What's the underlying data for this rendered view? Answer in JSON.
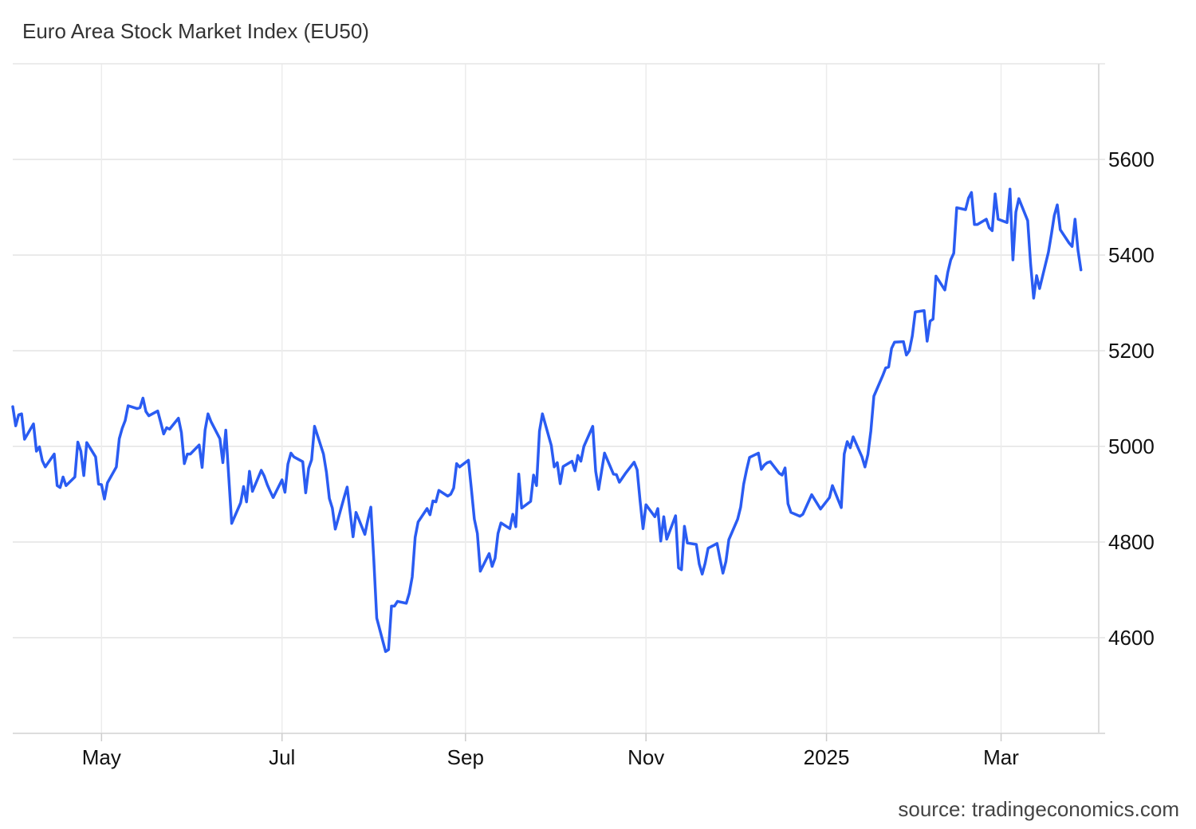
{
  "chart_data": {
    "type": "line",
    "title": "Euro Area Stock Market Index (EU50)",
    "source": "source: tradingeconomics.com",
    "xlabel": "",
    "ylabel": "",
    "x_ticks": [
      "May",
      "Jul",
      "Sep",
      "Nov",
      "2025",
      "Mar"
    ],
    "x_tick_dates": [
      "2024-05-01",
      "2024-07-01",
      "2024-09-01",
      "2024-11-01",
      "2025-01-01",
      "2025-03-01"
    ],
    "y_ticks": [
      4600,
      4800,
      5000,
      5200,
      5400,
      5600
    ],
    "xlim": [
      "2024-04-01",
      "2025-04-03"
    ],
    "ylim": [
      4400,
      5800
    ],
    "grid": true,
    "y_axis_position": "right",
    "line_color": "#2a5cf2",
    "series": [
      {
        "name": "",
        "x": [
          "2024-04-01",
          "2024-04-02",
          "2024-04-03",
          "2024-04-04",
          "2024-04-05",
          "2024-04-08",
          "2024-04-09",
          "2024-04-10",
          "2024-04-11",
          "2024-04-12",
          "2024-04-15",
          "2024-04-16",
          "2024-04-17",
          "2024-04-18",
          "2024-04-19",
          "2024-04-22",
          "2024-04-23",
          "2024-04-24",
          "2024-04-25",
          "2024-04-26",
          "2024-04-29",
          "2024-04-30",
          "2024-05-01",
          "2024-05-02",
          "2024-05-03",
          "2024-05-06",
          "2024-05-07",
          "2024-05-08",
          "2024-05-09",
          "2024-05-10",
          "2024-05-13",
          "2024-05-14",
          "2024-05-15",
          "2024-05-16",
          "2024-05-17",
          "2024-05-20",
          "2024-05-21",
          "2024-05-22",
          "2024-05-23",
          "2024-05-24",
          "2024-05-27",
          "2024-05-28",
          "2024-05-29",
          "2024-05-30",
          "2024-05-31",
          "2024-06-03",
          "2024-06-04",
          "2024-06-05",
          "2024-06-06",
          "2024-06-07",
          "2024-06-10",
          "2024-06-11",
          "2024-06-12",
          "2024-06-13",
          "2024-06-14",
          "2024-06-17",
          "2024-06-18",
          "2024-06-19",
          "2024-06-20",
          "2024-06-21",
          "2024-06-24",
          "2024-06-25",
          "2024-06-26",
          "2024-06-27",
          "2024-06-28",
          "2024-07-01",
          "2024-07-02",
          "2024-07-03",
          "2024-07-04",
          "2024-07-05",
          "2024-07-08",
          "2024-07-09",
          "2024-07-10",
          "2024-07-11",
          "2024-07-12",
          "2024-07-15",
          "2024-07-16",
          "2024-07-17",
          "2024-07-18",
          "2024-07-19",
          "2024-07-22",
          "2024-07-23",
          "2024-07-24",
          "2024-07-25",
          "2024-07-26",
          "2024-07-29",
          "2024-07-30",
          "2024-07-31",
          "2024-08-01",
          "2024-08-02",
          "2024-08-05",
          "2024-08-06",
          "2024-08-07",
          "2024-08-08",
          "2024-08-09",
          "2024-08-12",
          "2024-08-13",
          "2024-08-14",
          "2024-08-15",
          "2024-08-16",
          "2024-08-19",
          "2024-08-20",
          "2024-08-21",
          "2024-08-22",
          "2024-08-23",
          "2024-08-26",
          "2024-08-27",
          "2024-08-28",
          "2024-08-29",
          "2024-08-30",
          "2024-09-02",
          "2024-09-03",
          "2024-09-04",
          "2024-09-05",
          "2024-09-06",
          "2024-09-09",
          "2024-09-10",
          "2024-09-11",
          "2024-09-12",
          "2024-09-13",
          "2024-09-16",
          "2024-09-17",
          "2024-09-18",
          "2024-09-19",
          "2024-09-20",
          "2024-09-23",
          "2024-09-24",
          "2024-09-25",
          "2024-09-26",
          "2024-09-27",
          "2024-09-30",
          "2024-10-01",
          "2024-10-02",
          "2024-10-03",
          "2024-10-04",
          "2024-10-07",
          "2024-10-08",
          "2024-10-09",
          "2024-10-10",
          "2024-10-11",
          "2024-10-14",
          "2024-10-15",
          "2024-10-16",
          "2024-10-17",
          "2024-10-18",
          "2024-10-21",
          "2024-10-22",
          "2024-10-23",
          "2024-10-24",
          "2024-10-25",
          "2024-10-28",
          "2024-10-29",
          "2024-10-30",
          "2024-10-31",
          "2024-11-01",
          "2024-11-04",
          "2024-11-05",
          "2024-11-06",
          "2024-11-07",
          "2024-11-08",
          "2024-11-11",
          "2024-11-12",
          "2024-11-13",
          "2024-11-14",
          "2024-11-15",
          "2024-11-18",
          "2024-11-19",
          "2024-11-20",
          "2024-11-21",
          "2024-11-22",
          "2024-11-25",
          "2024-11-26",
          "2024-11-27",
          "2024-11-28",
          "2024-11-29",
          "2024-12-02",
          "2024-12-03",
          "2024-12-04",
          "2024-12-05",
          "2024-12-06",
          "2024-12-09",
          "2024-12-10",
          "2024-12-11",
          "2024-12-12",
          "2024-12-13",
          "2024-12-16",
          "2024-12-17",
          "2024-12-18",
          "2024-12-19",
          "2024-12-20",
          "2024-12-23",
          "2024-12-24",
          "2024-12-27",
          "2024-12-30",
          "2025-01-02",
          "2025-01-03",
          "2025-01-06",
          "2025-01-07",
          "2025-01-08",
          "2025-01-09",
          "2025-01-10",
          "2025-01-13",
          "2025-01-14",
          "2025-01-15",
          "2025-01-16",
          "2025-01-17",
          "2025-01-20",
          "2025-01-21",
          "2025-01-22",
          "2025-01-23",
          "2025-01-24",
          "2025-01-27",
          "2025-01-28",
          "2025-01-29",
          "2025-01-30",
          "2025-01-31",
          "2025-02-03",
          "2025-02-04",
          "2025-02-05",
          "2025-02-06",
          "2025-02-07",
          "2025-02-10",
          "2025-02-11",
          "2025-02-12",
          "2025-02-13",
          "2025-02-14",
          "2025-02-17",
          "2025-02-18",
          "2025-02-19",
          "2025-02-20",
          "2025-02-21",
          "2025-02-24",
          "2025-02-25",
          "2025-02-26",
          "2025-02-27",
          "2025-02-28",
          "2025-03-03",
          "2025-03-04",
          "2025-03-05",
          "2025-03-06",
          "2025-03-07",
          "2025-03-10",
          "2025-03-11",
          "2025-03-12",
          "2025-03-13",
          "2025-03-14",
          "2025-03-17",
          "2025-03-18",
          "2025-03-19",
          "2025-03-20",
          "2025-03-21",
          "2025-03-24",
          "2025-03-25",
          "2025-03-26",
          "2025-03-27",
          "2025-03-28"
        ],
        "values": [
          5083,
          5043,
          5066,
          5068,
          5015,
          5047,
          4990,
          4999,
          4970,
          4957,
          4984,
          4918,
          4914,
          4936,
          4918,
          4936,
          5009,
          4990,
          4939,
          5008,
          4978,
          4921,
          4920,
          4890,
          4924,
          4957,
          5016,
          5038,
          5054,
          5085,
          5079,
          5081,
          5101,
          5073,
          5064,
          5074,
          5050,
          5026,
          5039,
          5036,
          5059,
          5029,
          4964,
          4984,
          4984,
          5003,
          4956,
          5034,
          5068,
          5052,
          5016,
          4966,
          5034,
          4936,
          4839,
          4882,
          4916,
          4884,
          4948,
          4906,
          4950,
          4938,
          4920,
          4906,
          4893,
          4930,
          4904,
          4963,
          4986,
          4978,
          4968,
          4903,
          4954,
          4972,
          5042,
          4984,
          4946,
          4891,
          4871,
          4827,
          4894,
          4915,
          4862,
          4811,
          4862,
          4816,
          4846,
          4873,
          4763,
          4641,
          4571,
          4575,
          4666,
          4666,
          4676,
          4672,
          4693,
          4727,
          4810,
          4842,
          4870,
          4857,
          4886,
          4884,
          4908,
          4896,
          4900,
          4913,
          4964,
          4957,
          4971,
          4911,
          4848,
          4818,
          4739,
          4776,
          4749,
          4766,
          4818,
          4840,
          4828,
          4858,
          4832,
          4942,
          4871,
          4885,
          4940,
          4918,
          5032,
          5068,
          5002,
          4957,
          4966,
          4922,
          4958,
          4969,
          4949,
          4981,
          4969,
          5000,
          5042,
          4948,
          4910,
          4948,
          4986,
          4942,
          4941,
          4925,
          4934,
          4943,
          4967,
          4951,
          4886,
          4828,
          4878,
          4853,
          4870,
          4802,
          4853,
          4806,
          4855,
          4746,
          4742,
          4833,
          4798,
          4795,
          4754,
          4733,
          4756,
          4787,
          4797,
          4765,
          4735,
          4759,
          4805,
          4848,
          4873,
          4921,
          4951,
          4977,
          4986,
          4952,
          4961,
          4966,
          4968,
          4944,
          4940,
          4955,
          4880,
          4862,
          4854,
          4858,
          4899,
          4869,
          4893,
          4918,
          4872,
          4984,
          5010,
          4997,
          5020,
          4978,
          4957,
          4983,
          5032,
          5105,
          5148,
          5164,
          5166,
          5205,
          5218,
          5219,
          5191,
          5200,
          5231,
          5281,
          5284,
          5220,
          5262,
          5266,
          5356,
          5327,
          5364,
          5390,
          5404,
          5499,
          5495,
          5519,
          5531,
          5464,
          5464,
          5475,
          5457,
          5451,
          5528,
          5475,
          5468,
          5538,
          5390,
          5490,
          5518,
          5472,
          5381,
          5310,
          5357,
          5330,
          5406,
          5443,
          5483,
          5505,
          5453,
          5425,
          5418,
          5475,
          5410,
          5369
        ]
      }
    ]
  }
}
